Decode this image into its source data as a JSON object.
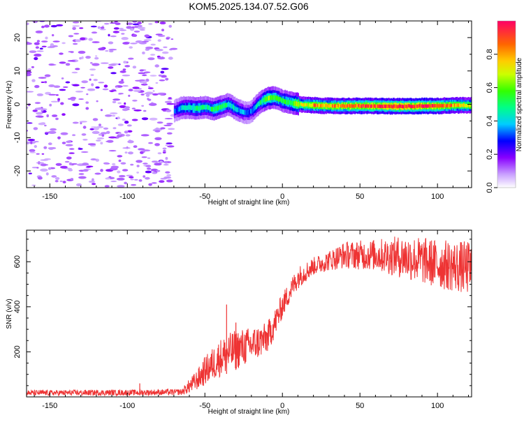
{
  "title": "KOM5.2025.134.07.52.G06",
  "chart_data": [
    {
      "type": "heatmap",
      "xlabel": "Height of straight line (km)",
      "ylabel": "Frequency (Hz)",
      "xlim": [
        -165,
        122
      ],
      "ylim": [
        -25,
        25
      ],
      "xticks": [
        -150,
        -100,
        -50,
        0,
        50,
        100
      ],
      "yticks": [
        -20,
        -10,
        0,
        10,
        20
      ],
      "noise_region_x": [
        -165,
        -70
      ],
      "colorbar": {
        "label": "Normalized spectral amplitude",
        "range": [
          0,
          1
        ],
        "ticks": [
          0.0,
          0.2,
          0.4,
          0.6,
          0.8
        ],
        "colors": [
          "#ffffff",
          "#8800ff",
          "#0000ff",
          "#00ffff",
          "#00ff00",
          "#ffff00",
          "#ff8800",
          "#ff0066"
        ]
      },
      "signal_track": {
        "x": [
          -70,
          -65,
          -60,
          -55,
          -50,
          -45,
          -40,
          -35,
          -30,
          -25,
          -22,
          -20,
          -15,
          -10,
          -5,
          0,
          5,
          10,
          15,
          20,
          30,
          40,
          50,
          60,
          70,
          80,
          90,
          100,
          110,
          122
        ],
        "freq": [
          -2.0,
          -1.0,
          -1.0,
          -1.2,
          -0.8,
          -1.5,
          -0.8,
          0.0,
          -1.5,
          -2.5,
          -2.5,
          -2.0,
          0.5,
          1.8,
          2.0,
          1.0,
          0.5,
          0.0,
          -0.2,
          -0.3,
          -0.5,
          -0.5,
          -0.5,
          -0.5,
          -0.6,
          -0.6,
          -0.5,
          -0.5,
          -0.3,
          -0.3
        ],
        "amplitude": [
          0.3,
          0.4,
          0.45,
          0.5,
          0.45,
          0.5,
          0.5,
          0.45,
          0.4,
          0.35,
          0.3,
          0.35,
          0.45,
          0.6,
          0.55,
          0.5,
          0.55,
          0.7,
          0.7,
          0.8,
          0.8,
          0.85,
          0.9,
          0.9,
          0.95,
          0.95,
          0.95,
          0.9,
          0.8,
          0.7
        ]
      }
    },
    {
      "type": "line",
      "xlabel": "Height of straight line (km)",
      "ylabel": "SNR (v/v)",
      "xlim": [
        -165,
        122
      ],
      "ylim": [
        0,
        740
      ],
      "xticks": [
        -150,
        -100,
        -50,
        0,
        50,
        100
      ],
      "yticks": [
        200,
        400,
        600
      ],
      "color": "#ee3333",
      "envelope": {
        "x": [
          -165,
          -100,
          -65,
          -60,
          -55,
          -50,
          -40,
          -30,
          -20,
          -10,
          -5,
          0,
          5,
          10,
          20,
          30,
          40,
          60,
          80,
          100,
          122
        ],
        "low": [
          5,
          6,
          8,
          15,
          30,
          50,
          90,
          120,
          150,
          190,
          260,
          350,
          420,
          480,
          540,
          560,
          570,
          560,
          520,
          480,
          450
        ],
        "high": [
          30,
          32,
          35,
          80,
          120,
          180,
          260,
          300,
          310,
          330,
          390,
          460,
          520,
          580,
          620,
          650,
          690,
          700,
          720,
          700,
          690
        ]
      },
      "spikes": [
        {
          "x": -36,
          "y": 410
        },
        {
          "x": -30,
          "y": 330
        },
        {
          "x": -92,
          "y": 60
        }
      ]
    }
  ]
}
